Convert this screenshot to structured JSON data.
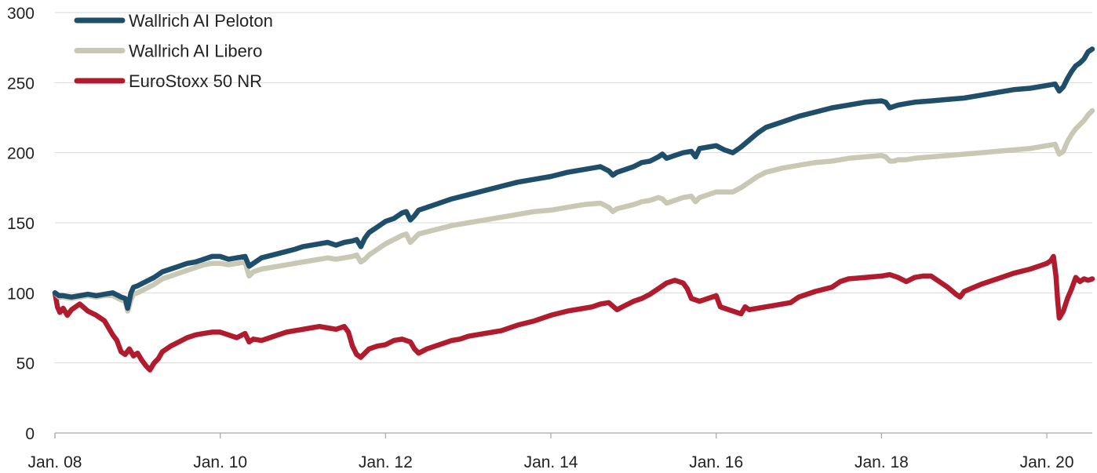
{
  "chart_data": {
    "type": "line",
    "title": "",
    "xlabel": "",
    "ylabel": "",
    "ylim": [
      0,
      300
    ],
    "yticks": [
      0,
      50,
      100,
      150,
      200,
      250,
      300
    ],
    "xlim": [
      2008.0,
      2020.55
    ],
    "xticks": [
      {
        "value": 2008,
        "label": "Jan. 08"
      },
      {
        "value": 2010,
        "label": "Jan. 10"
      },
      {
        "value": 2012,
        "label": "Jan. 12"
      },
      {
        "value": 2014,
        "label": "Jan. 14"
      },
      {
        "value": 2016,
        "label": "Jan. 16"
      },
      {
        "value": 2018,
        "label": "Jan. 18"
      },
      {
        "value": 2020,
        "label": "Jan. 20"
      }
    ],
    "grid": true,
    "legend_position": "top-left",
    "series": [
      {
        "name": "Wallrich AI Peloton",
        "color": "#1f4e6b",
        "x": [
          2008.0,
          2008.05,
          2008.1,
          2008.2,
          2008.3,
          2008.4,
          2008.5,
          2008.6,
          2008.7,
          2008.8,
          2008.85,
          2008.88,
          2008.92,
          2008.95,
          2009.0,
          2009.1,
          2009.2,
          2009.3,
          2009.4,
          2009.5,
          2009.6,
          2009.7,
          2009.8,
          2009.9,
          2010.0,
          2010.1,
          2010.2,
          2010.3,
          2010.35,
          2010.4,
          2010.5,
          2010.7,
          2010.9,
          2011.0,
          2011.2,
          2011.3,
          2011.4,
          2011.5,
          2011.6,
          2011.65,
          2011.7,
          2011.75,
          2011.8,
          2011.9,
          2012.0,
          2012.1,
          2012.2,
          2012.25,
          2012.3,
          2012.35,
          2012.4,
          2012.6,
          2012.8,
          2013.0,
          2013.2,
          2013.4,
          2013.6,
          2013.8,
          2014.0,
          2014.2,
          2014.4,
          2014.6,
          2014.7,
          2014.75,
          2014.8,
          2015.0,
          2015.1,
          2015.2,
          2015.3,
          2015.35,
          2015.4,
          2015.5,
          2015.6,
          2015.7,
          2015.75,
          2015.8,
          2015.9,
          2016.0,
          2016.1,
          2016.2,
          2016.3,
          2016.4,
          2016.5,
          2016.6,
          2016.8,
          2017.0,
          2017.2,
          2017.4,
          2017.6,
          2017.8,
          2018.0,
          2018.05,
          2018.1,
          2018.15,
          2018.2,
          2018.3,
          2018.4,
          2018.6,
          2018.8,
          2019.0,
          2019.2,
          2019.4,
          2019.6,
          2019.8,
          2020.0,
          2020.1,
          2020.15,
          2020.2,
          2020.25,
          2020.3,
          2020.35,
          2020.4,
          2020.45,
          2020.5,
          2020.55
        ],
        "values": [
          100,
          98,
          98,
          97,
          98,
          99,
          98,
          99,
          100,
          97,
          96,
          89,
          100,
          104,
          105,
          108,
          111,
          115,
          117,
          119,
          121,
          122,
          124,
          126,
          126,
          124,
          125,
          126,
          119,
          121,
          125,
          128,
          131,
          133,
          135,
          136,
          134,
          136,
          137,
          138,
          133,
          139,
          143,
          147,
          151,
          153,
          157,
          158,
          152,
          155,
          159,
          163,
          167,
          170,
          173,
          176,
          179,
          181,
          183,
          186,
          188,
          190,
          187,
          184,
          186,
          190,
          193,
          194,
          197,
          199,
          196,
          198,
          200,
          201,
          197,
          203,
          204,
          205,
          202,
          200,
          204,
          209,
          214,
          218,
          222,
          226,
          229,
          232,
          234,
          236,
          237,
          236,
          232,
          233,
          234,
          235,
          236,
          237,
          238,
          239,
          241,
          243,
          245,
          246,
          248,
          249,
          244,
          247,
          253,
          258,
          262,
          264,
          267,
          272,
          274
        ]
      },
      {
        "name": "Wallrich AI Libero",
        "color": "#c9c8b4",
        "x": [
          2008.0,
          2008.05,
          2008.1,
          2008.2,
          2008.3,
          2008.4,
          2008.5,
          2008.6,
          2008.7,
          2008.8,
          2008.85,
          2008.88,
          2008.92,
          2008.95,
          2009.0,
          2009.1,
          2009.2,
          2009.3,
          2009.4,
          2009.5,
          2009.6,
          2009.7,
          2009.8,
          2009.9,
          2010.0,
          2010.1,
          2010.2,
          2010.3,
          2010.35,
          2010.4,
          2010.5,
          2010.7,
          2010.9,
          2011.0,
          2011.2,
          2011.3,
          2011.4,
          2011.5,
          2011.6,
          2011.65,
          2011.7,
          2011.75,
          2011.8,
          2011.9,
          2012.0,
          2012.1,
          2012.2,
          2012.25,
          2012.3,
          2012.35,
          2012.4,
          2012.6,
          2012.8,
          2013.0,
          2013.2,
          2013.4,
          2013.6,
          2013.8,
          2014.0,
          2014.2,
          2014.4,
          2014.6,
          2014.7,
          2014.75,
          2014.8,
          2015.0,
          2015.1,
          2015.2,
          2015.3,
          2015.35,
          2015.4,
          2015.5,
          2015.6,
          2015.7,
          2015.75,
          2015.8,
          2015.9,
          2016.0,
          2016.1,
          2016.2,
          2016.3,
          2016.4,
          2016.5,
          2016.6,
          2016.8,
          2017.0,
          2017.2,
          2017.4,
          2017.6,
          2017.8,
          2018.0,
          2018.05,
          2018.1,
          2018.15,
          2018.2,
          2018.3,
          2018.4,
          2018.6,
          2018.8,
          2019.0,
          2019.2,
          2019.4,
          2019.6,
          2019.8,
          2020.0,
          2020.1,
          2020.15,
          2020.2,
          2020.25,
          2020.3,
          2020.35,
          2020.4,
          2020.45,
          2020.5,
          2020.55
        ],
        "values": [
          100,
          97,
          97,
          96,
          97,
          98,
          97,
          98,
          98,
          95,
          94,
          87,
          95,
          99,
          100,
          103,
          106,
          110,
          112,
          114,
          116,
          118,
          120,
          121,
          121,
          120,
          121,
          122,
          112,
          115,
          117,
          119,
          121,
          122,
          124,
          125,
          124,
          125,
          126,
          127,
          122,
          124,
          127,
          131,
          135,
          138,
          141,
          142,
          136,
          139,
          142,
          145,
          148,
          150,
          152,
          154,
          156,
          158,
          159,
          161,
          163,
          164,
          161,
          158,
          160,
          163,
          165,
          166,
          168,
          167,
          164,
          166,
          168,
          169,
          165,
          168,
          170,
          172,
          172,
          172,
          175,
          179,
          183,
          186,
          189,
          191,
          193,
          194,
          196,
          197,
          198,
          197,
          194,
          194,
          195,
          195,
          196,
          197,
          198,
          199,
          200,
          201,
          202,
          203,
          205,
          206,
          199,
          201,
          208,
          213,
          217,
          220,
          223,
          227,
          230
        ]
      },
      {
        "name": "EuroStoxx 50 NR",
        "color": "#b01c2e",
        "x": [
          2008.0,
          2008.03,
          2008.06,
          2008.1,
          2008.15,
          2008.2,
          2008.25,
          2008.3,
          2008.4,
          2008.5,
          2008.6,
          2008.7,
          2008.75,
          2008.8,
          2008.85,
          2008.9,
          2008.95,
          2009.0,
          2009.05,
          2009.1,
          2009.15,
          2009.2,
          2009.25,
          2009.3,
          2009.4,
          2009.5,
          2009.6,
          2009.7,
          2009.8,
          2009.9,
          2010.0,
          2010.1,
          2010.2,
          2010.3,
          2010.35,
          2010.4,
          2010.5,
          2010.6,
          2010.7,
          2010.8,
          2010.9,
          2011.0,
          2011.1,
          2011.2,
          2011.3,
          2011.4,
          2011.5,
          2011.55,
          2011.6,
          2011.65,
          2011.7,
          2011.75,
          2011.8,
          2011.9,
          2012.0,
          2012.1,
          2012.2,
          2012.3,
          2012.35,
          2012.4,
          2012.5,
          2012.6,
          2012.7,
          2012.8,
          2012.9,
          2013.0,
          2013.2,
          2013.4,
          2013.6,
          2013.8,
          2014.0,
          2014.2,
          2014.4,
          2014.5,
          2014.6,
          2014.7,
          2014.8,
          2014.9,
          2015.0,
          2015.1,
          2015.2,
          2015.3,
          2015.4,
          2015.5,
          2015.6,
          2015.65,
          2015.7,
          2015.8,
          2015.9,
          2016.0,
          2016.05,
          2016.1,
          2016.2,
          2016.3,
          2016.35,
          2016.4,
          2016.5,
          2016.6,
          2016.7,
          2016.8,
          2016.9,
          2017.0,
          2017.2,
          2017.4,
          2017.5,
          2017.6,
          2017.8,
          2018.0,
          2018.1,
          2018.2,
          2018.3,
          2018.4,
          2018.5,
          2018.6,
          2018.8,
          2018.9,
          2018.95,
          2019.0,
          2019.2,
          2019.4,
          2019.6,
          2019.8,
          2019.9,
          2020.0,
          2020.05,
          2020.08,
          2020.11,
          2020.13,
          2020.15,
          2020.2,
          2020.25,
          2020.3,
          2020.35,
          2020.4,
          2020.45,
          2020.5,
          2020.55
        ],
        "values": [
          100,
          90,
          86,
          89,
          84,
          88,
          90,
          92,
          87,
          84,
          80,
          70,
          66,
          58,
          56,
          60,
          55,
          57,
          52,
          48,
          45,
          50,
          53,
          58,
          62,
          65,
          68,
          70,
          71,
          72,
          72,
          70,
          68,
          71,
          65,
          67,
          66,
          68,
          70,
          72,
          73,
          74,
          75,
          76,
          75,
          74,
          76,
          72,
          62,
          56,
          54,
          57,
          60,
          62,
          63,
          66,
          67,
          65,
          60,
          57,
          60,
          62,
          64,
          66,
          67,
          69,
          71,
          73,
          77,
          80,
          84,
          87,
          89,
          90,
          92,
          93,
          88,
          91,
          94,
          96,
          99,
          103,
          107,
          109,
          107,
          103,
          96,
          94,
          96,
          98,
          90,
          89,
          87,
          85,
          90,
          88,
          89,
          90,
          91,
          92,
          93,
          97,
          101,
          104,
          108,
          110,
          111,
          112,
          113,
          111,
          108,
          111,
          112,
          112,
          104,
          99,
          97,
          101,
          106,
          110,
          114,
          117,
          119,
          121,
          123,
          126,
          112,
          95,
          82,
          87,
          96,
          103,
          111,
          108,
          110,
          109,
          110
        ]
      }
    ]
  }
}
